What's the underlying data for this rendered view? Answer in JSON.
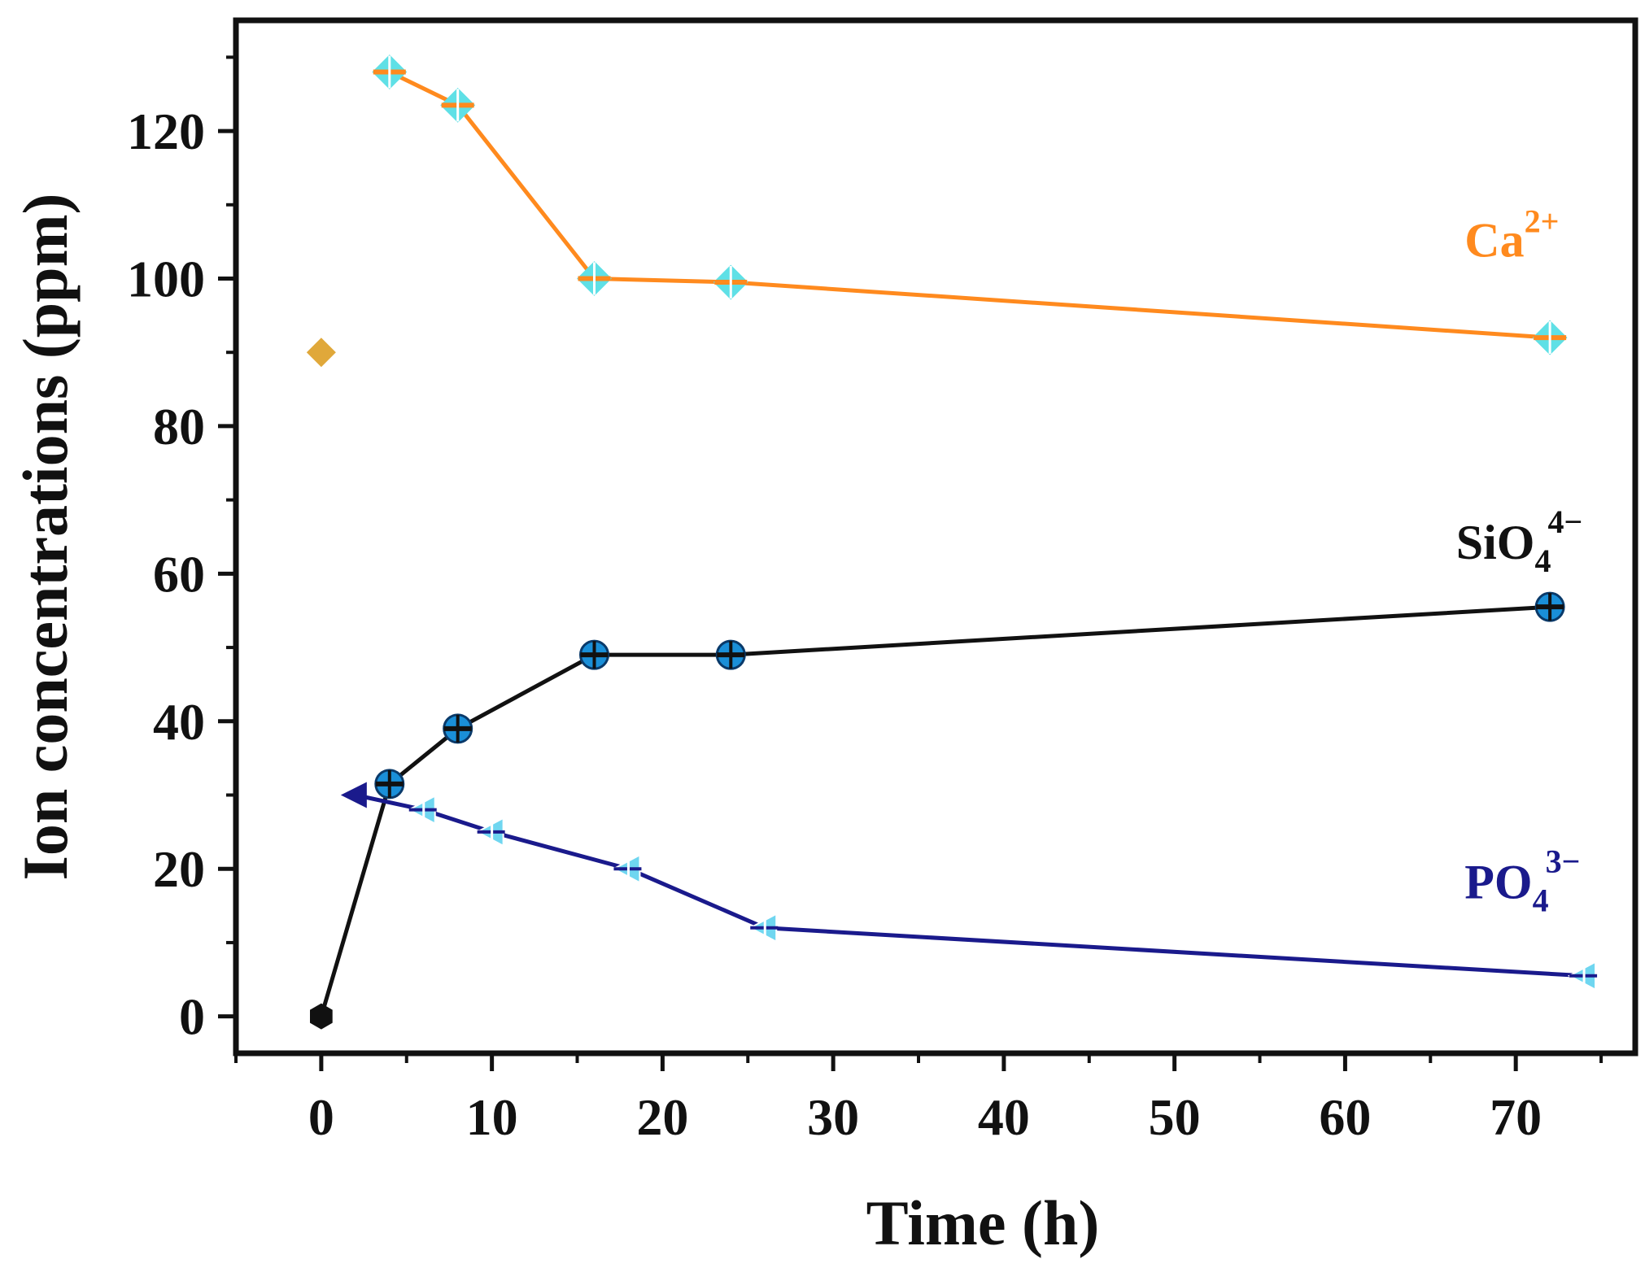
{
  "chart_data": {
    "type": "line",
    "title": "",
    "xlabel": "Time (h)",
    "ylabel": "Ion concentrations (ppm)",
    "xlim": [
      -5,
      77
    ],
    "ylim": [
      -5,
      135
    ],
    "xticks": [
      0,
      10,
      20,
      30,
      40,
      50,
      60,
      70
    ],
    "yticks": [
      0,
      20,
      40,
      60,
      80,
      100,
      120
    ],
    "x_tick_labels": [
      "0",
      "10",
      "20",
      "30",
      "40",
      "50",
      "60",
      "70"
    ],
    "y_tick_labels": [
      "0",
      "20",
      "40",
      "60",
      "80",
      "100",
      "120"
    ],
    "grid": false,
    "series": [
      {
        "name": "Ca",
        "superscript": "2+",
        "subscript": "",
        "color": "#ff8a1e",
        "first_marker_color": "#e0a83a",
        "marker_fill": "#5fe0e6",
        "first_marker": "diamond",
        "marker": "cross-diamond",
        "x": [
          0,
          4,
          8,
          16,
          24,
          72
        ],
        "y": [
          90,
          128,
          123.5,
          100,
          99.5,
          92
        ],
        "label_at": [
          67,
          103
        ]
      },
      {
        "name": "SiO",
        "superscript": "4−",
        "subscript": "4",
        "color": "#111111",
        "first_marker_color": "#111111",
        "marker_fill": "#1a8fd8",
        "first_marker": "hexagon",
        "marker": "cross-circle",
        "x": [
          0,
          4,
          8,
          16,
          24,
          72
        ],
        "y": [
          0,
          31.5,
          39,
          49,
          49,
          55.5
        ],
        "label_at": [
          66.5,
          62
        ]
      },
      {
        "name": "PO",
        "superscript": "3−",
        "subscript": "4",
        "color": "#1a1a8c",
        "first_marker_color": "#1a1a8c",
        "marker_fill": "#6fd6f0",
        "first_marker": "triangle-left",
        "marker": "cross-triangle-left",
        "x": [
          2,
          6,
          10,
          18,
          26,
          74
        ],
        "y": [
          30,
          28,
          25,
          20,
          12,
          5.5
        ],
        "label_at": [
          67,
          16
        ]
      }
    ]
  }
}
